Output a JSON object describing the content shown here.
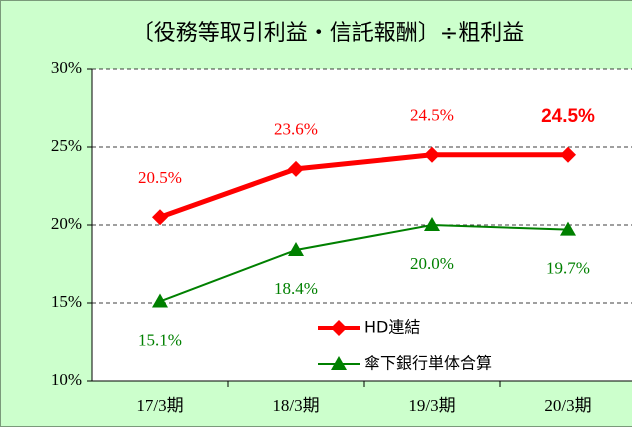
{
  "chart_data": {
    "type": "line",
    "title": "〔役務等取引利益・信託報酬〕÷粗利益",
    "categories": [
      "17/3期",
      "18/3期",
      "19/3期",
      "20/3期"
    ],
    "series": [
      {
        "name": "HD連結",
        "color": "#ff0000",
        "values": [
          20.5,
          23.6,
          24.5,
          24.5
        ],
        "value_labels": [
          "20.5%",
          "23.6%",
          "24.5%",
          "24.5%"
        ]
      },
      {
        "name": "傘下銀行単体合算",
        "color": "#008000",
        "values": [
          15.1,
          18.4,
          20.0,
          19.7
        ],
        "value_labels": [
          "15.1%",
          "18.4%",
          "20.0%",
          "19.7%"
        ]
      }
    ],
    "ylim": [
      10,
      30
    ],
    "yticks": [
      {
        "value": 10,
        "label": "10%"
      },
      {
        "value": 15,
        "label": "15%"
      },
      {
        "value": 20,
        "label": "20%"
      },
      {
        "value": 25,
        "label": "25%"
      },
      {
        "value": 30,
        "label": "30%"
      }
    ],
    "grid": true
  }
}
